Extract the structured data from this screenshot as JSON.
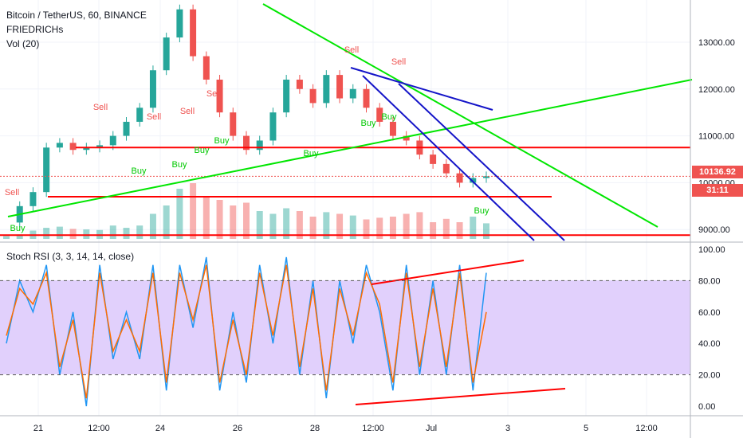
{
  "header": {
    "symbol_line": "Bitcoin / TetherUS, 60, BINANCE",
    "indicator_1": "FRIEDRICHs",
    "indicator_2": "Vol (20)",
    "rsi_label": "Stoch RSI (3, 3, 14, 14, close)"
  },
  "price_badges": {
    "last_price": "10136.92",
    "countdown": "31:11"
  },
  "colors": {
    "up": "#26a69a",
    "down": "#ef5350",
    "rsi_k": "#2196f3",
    "rsi_d": "#ff6d00",
    "rsi_band": "#e1d0fc",
    "trend_red": "#ff0000",
    "trend_green": "#00e600",
    "trend_blue": "#1414c8",
    "badge_red": "#ef5350",
    "signal_sell": "#ef5350",
    "signal_buy": "#00c800"
  },
  "chart_data": [
    {
      "type": "line",
      "title": "Bitcoin / TetherUS, 60, BINANCE",
      "x_ticks": [
        "21",
        "12:00",
        "24",
        "26",
        "28",
        "12:00",
        "Jul",
        "3",
        "5",
        "12:00"
      ],
      "y_ticks": [
        "9000.00",
        "10000.00",
        "11000.00",
        "12000.00",
        "13000.00"
      ],
      "ylim": [
        8800,
        13900
      ],
      "x": [
        "20 12:00",
        "21 00:00",
        "21 12:00",
        "22 00:00",
        "22 12:00",
        "23 00:00",
        "23 12:00",
        "24 00:00",
        "24 12:00",
        "25 00:00",
        "25 12:00",
        "26 00:00",
        "26 06:00",
        "26 12:00",
        "26 18:00",
        "27 00:00",
        "27 06:00",
        "27 12:00",
        "27 18:00",
        "28 00:00",
        "28 06:00",
        "28 12:00",
        "28 18:00",
        "29 00:00",
        "29 06:00",
        "29 12:00",
        "29 18:00",
        "30 00:00",
        "30 06:00",
        "30 12:00",
        "30 18:00",
        "Jul 1 00:00",
        "Jul 1 06:00",
        "Jul 1 12:00",
        "Jul 1 18:00",
        "Jul 2 00:00",
        "Jul 2 06:00"
      ],
      "series": [
        {
          "values": [
            9150,
            9500,
            9800,
            10750,
            10850,
            10700,
            10750,
            10800,
            11000,
            11300,
            11600,
            12400,
            13100,
            13700,
            12700,
            12200,
            11500,
            11000,
            10700,
            10900,
            11500,
            12200,
            12000,
            11700,
            12300,
            11800,
            12000,
            11600,
            11300,
            11000,
            10900,
            10600,
            10400,
            10200,
            10000,
            10100,
            10137
          ]
        }
      ],
      "volume": [
        5,
        8,
        15,
        20,
        22,
        18,
        17,
        16,
        24,
        20,
        24,
        45,
        60,
        90,
        100,
        75,
        70,
        60,
        65,
        50,
        45,
        55,
        50,
        40,
        48,
        45,
        42,
        35,
        38,
        40,
        45,
        48,
        30,
        36,
        30,
        40,
        28
      ],
      "signals": [
        {
          "label": "Sell",
          "x": "20 18:00",
          "price": 9800
        },
        {
          "label": "Buy",
          "x": "20 06:00",
          "price": 9000
        },
        {
          "label": "Sell",
          "x": "22 00:00",
          "price": 11600
        },
        {
          "label": "Buy",
          "x": "23 06:00",
          "price": 10500
        },
        {
          "label": "Sell",
          "x": "23 06:00",
          "price": 11500
        },
        {
          "label": "Buy",
          "x": "24 00:00",
          "price": 10600
        },
        {
          "label": "Sell",
          "x": "24 18:00",
          "price": 11600
        },
        {
          "label": "Buy",
          "x": "24 18:00",
          "price": 10800
        },
        {
          "label": "Sell",
          "x": "25 18:00",
          "price": 12000
        },
        {
          "label": "Buy",
          "x": "25 18:00",
          "price": 11000
        },
        {
          "label": "Buy",
          "x": "27 12:00",
          "price": 10800
        },
        {
          "label": "Sell",
          "x": "29 12:00",
          "price": 12700
        },
        {
          "label": "Buy",
          "x": "29 15:00",
          "price": 11200
        },
        {
          "label": "Sell",
          "x": "30 00:00",
          "price": 12700
        },
        {
          "label": "Buy",
          "x": "30 06:00",
          "price": 11400
        },
        {
          "label": "Buy",
          "x": "Jul 2 06:00",
          "price": 9400
        }
      ],
      "horizontal_lines": [
        10750,
        9700,
        8880
      ],
      "last_price": 10137
    },
    {
      "type": "line",
      "title": "Stoch RSI (3, 3, 14, 14, close)",
      "y_ticks": [
        "0.00",
        "20.00",
        "40.00",
        "60.00",
        "80.00",
        "100.00"
      ],
      "ylim": [
        0,
        100
      ],
      "bands": [
        20,
        80
      ],
      "series": [
        {
          "values": [
            40,
            80,
            60,
            90,
            20,
            60,
            0,
            90,
            30,
            60,
            30,
            90,
            10,
            90,
            50,
            95,
            10,
            60,
            15,
            90,
            40,
            95,
            20,
            80,
            5,
            80,
            40,
            90,
            60,
            10,
            90,
            20,
            80,
            20,
            90,
            10,
            85
          ]
        },
        {
          "values": [
            45,
            75,
            65,
            85,
            25,
            55,
            5,
            85,
            35,
            55,
            35,
            85,
            15,
            85,
            55,
            90,
            15,
            55,
            20,
            85,
            45,
            90,
            25,
            75,
            10,
            75,
            45,
            85,
            65,
            15,
            85,
            25,
            75,
            25,
            85,
            15,
            60
          ]
        }
      ]
    }
  ]
}
